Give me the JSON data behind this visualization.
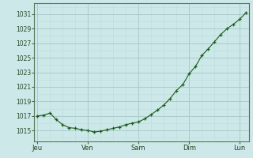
{
  "background_color": "#cce8e8",
  "grid_color_major": "#aacccc",
  "grid_color_minor": "#c0dede",
  "line_color": "#1a5c1a",
  "marker_color": "#1a5c1a",
  "ylabel_values": [
    1015,
    1017,
    1019,
    1021,
    1023,
    1025,
    1027,
    1029,
    1031
  ],
  "x_ticks_labels": [
    "Jeu",
    "Ven",
    "Sam",
    "Dim",
    "Lun"
  ],
  "x_ticks_pos": [
    0,
    8,
    16,
    24,
    32
  ],
  "ylim": [
    1013.5,
    1032.5
  ],
  "xlim": [
    -0.5,
    33.5
  ],
  "data_y": [
    1017.0,
    1017.1,
    1017.4,
    1016.5,
    1015.8,
    1015.4,
    1015.3,
    1015.1,
    1015.0,
    1014.8,
    1014.9,
    1015.1,
    1015.3,
    1015.5,
    1015.8,
    1016.0,
    1016.2,
    1016.6,
    1017.2,
    1017.8,
    1018.5,
    1019.4,
    1020.5,
    1021.3,
    1022.8,
    1023.8,
    1025.3,
    1026.2,
    1027.2,
    1028.2,
    1029.0,
    1029.6,
    1030.3,
    1031.2
  ]
}
